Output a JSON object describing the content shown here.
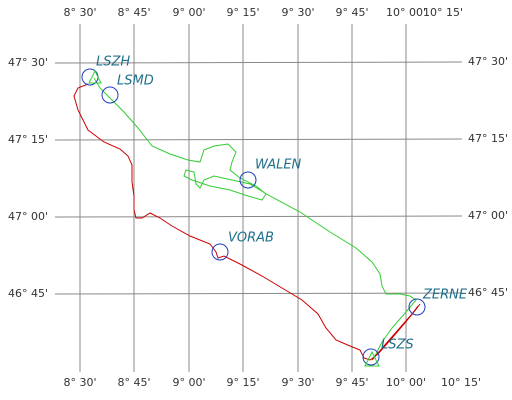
{
  "longitude_labels": [
    "8° 30'",
    "8° 45'",
    "9° 00'",
    "9° 15'",
    "9° 30'",
    "9° 45'",
    "10° 00'",
    "10° 15'"
  ],
  "latitude_labels": [
    "47° 30'",
    "47° 15'",
    "47° 00'",
    "46° 45'"
  ],
  "waypoints": [
    "LSZH",
    "LSMD",
    "WALEN",
    "VORAB",
    "ZERNE",
    "LSZS"
  ]
}
